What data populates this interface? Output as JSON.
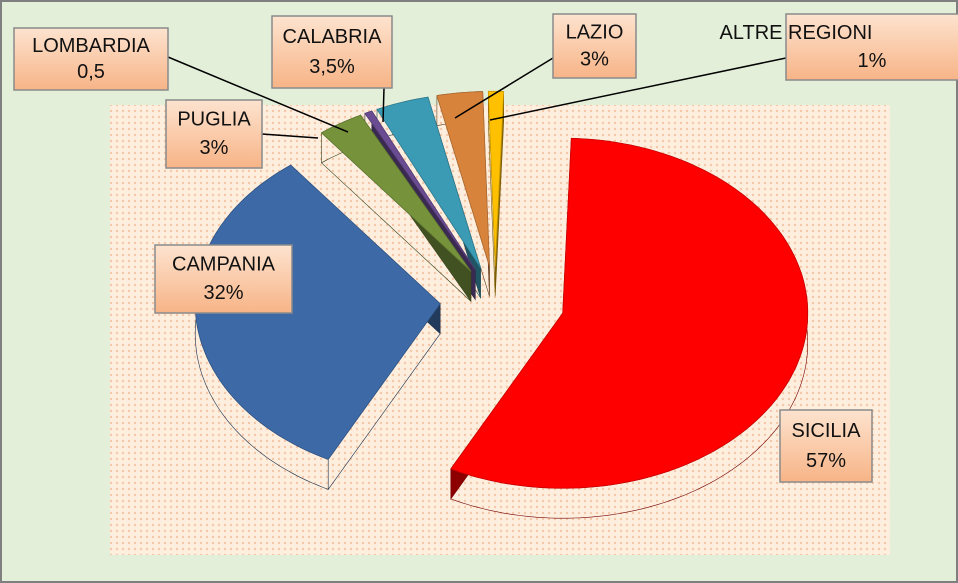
{
  "chart_data": {
    "type": "pie",
    "categories": [
      "SICILIA",
      "CAMPANIA",
      "PUGLIA",
      "LOMBARDIA",
      "CALABRIA",
      "LAZIO",
      "ALTRE REGIONI"
    ],
    "values": [
      57,
      32,
      3,
      0.5,
      3.5,
      3,
      1
    ],
    "value_labels": [
      "57%",
      "32%",
      "3%",
      "0,5",
      "3,5%",
      "3%",
      "1%"
    ],
    "colors": [
      "#ff0000",
      "#3d6aa6",
      "#76933c",
      "#6a4c93",
      "#3b9bb5",
      "#d7833b",
      "#ffc000"
    ]
  }
}
